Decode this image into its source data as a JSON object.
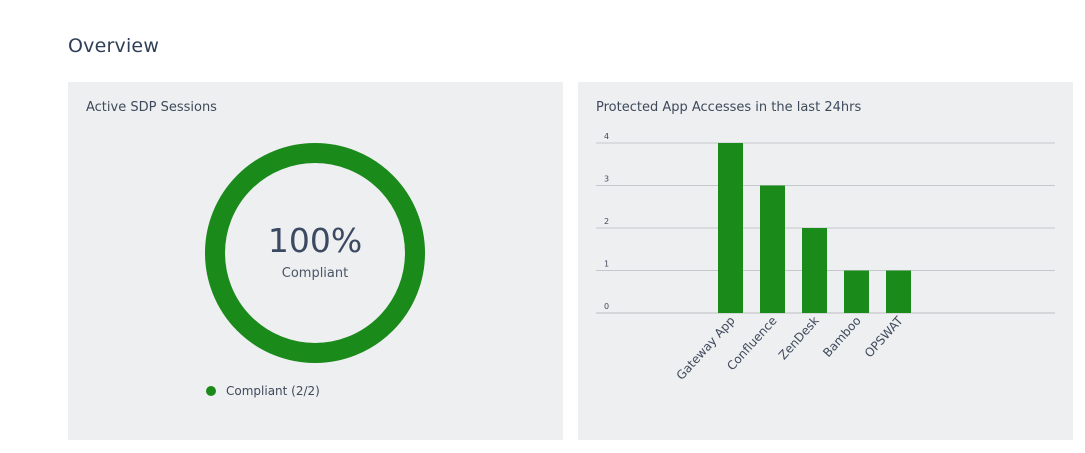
{
  "page": {
    "title": "Overview"
  },
  "sessions_card": {
    "title": "Active SDP Sessions",
    "percent_text": "100%",
    "status_label": "Compliant",
    "compliant_fraction": 1.0,
    "legend_label": "Compliant (2/2)",
    "ring_color": "#1a8a1a"
  },
  "accesses_card": {
    "title": "Protected App Accesses in the last 24hrs"
  },
  "chart_data": {
    "type": "bar",
    "categories": [
      "Gateway App",
      "Confluence",
      "ZenDesk",
      "Bamboo",
      "OPSWAT"
    ],
    "values": [
      4,
      3,
      2,
      1,
      1
    ],
    "yticks": [
      "0",
      "1",
      "2",
      "3",
      "4"
    ],
    "ylim": [
      0,
      4
    ],
    "grid": true,
    "bar_color": "#1a8a1a"
  }
}
